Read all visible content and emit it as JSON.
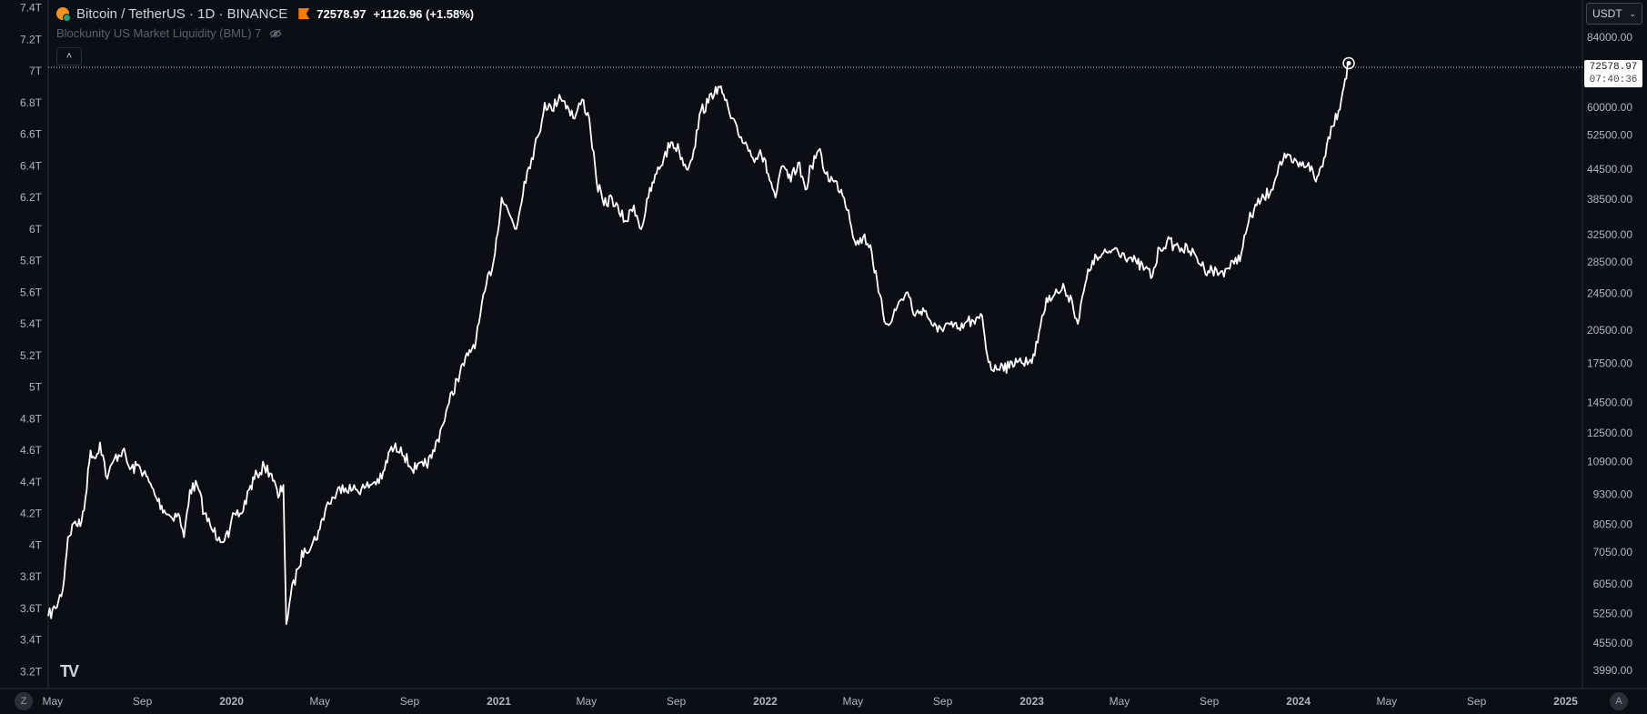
{
  "header": {
    "symbol": "Bitcoin / TetherUS · 1D · BINANCE",
    "last_price": "72578.97",
    "change": "+1126.96 (+1.58%)",
    "icon": "bitcoin-tether-icon"
  },
  "indicator": {
    "label": "Blockunity US Market Liquidity (BML) 7",
    "icon": "eye-hidden-icon"
  },
  "controls": {
    "collapse_label": "˄",
    "currency_label": "USDT",
    "currency_chevron": "⌄",
    "zoom_left_label": "Z",
    "auto_label": "A",
    "logo_text": "TV"
  },
  "price_marker": {
    "price": "72578.97",
    "countdown": "07:40:36"
  },
  "colors": {
    "background": "#0b0e14",
    "line": "#ffffff",
    "text": "#d1d4dc",
    "axis_text": "#b2b5be",
    "grid": "#1e222d"
  },
  "chart_data": {
    "type": "line",
    "title": "",
    "xlabel": "",
    "ylabel": "",
    "x_tick_labels": [
      "May",
      "Sep",
      "2020",
      "May",
      "Sep",
      "2021",
      "May",
      "Sep",
      "2022",
      "May",
      "Sep",
      "2023",
      "May",
      "Sep",
      "2024",
      "May",
      "Sep",
      "2025"
    ],
    "x_tick_dates": [
      "2019-05-01",
      "2019-09-01",
      "2020-01-01",
      "2020-05-01",
      "2020-09-01",
      "2021-01-01",
      "2021-05-01",
      "2021-09-01",
      "2022-01-01",
      "2022-05-01",
      "2022-09-01",
      "2023-01-01",
      "2023-05-01",
      "2023-09-01",
      "2024-01-01",
      "2024-05-01",
      "2024-09-01",
      "2025-01-01"
    ],
    "x_bold_labels": [
      "2020",
      "2021",
      "2022",
      "2023",
      "2024",
      "2025"
    ],
    "xlim": [
      "2019-04-25",
      "2025-01-24"
    ],
    "left_axis": {
      "name": "Blockunity US Market Liquidity",
      "ylim": [
        3.15,
        7.45
      ],
      "ticks": [
        3.2,
        3.4,
        3.6,
        3.8,
        4.0,
        4.2,
        4.4,
        4.6,
        4.8,
        5.0,
        5.2,
        5.4,
        5.6,
        5.8,
        6.0,
        6.2,
        6.4,
        6.6,
        6.8,
        7.0,
        7.2,
        7.4
      ],
      "tick_labels": [
        "3.2T",
        "3.4T",
        "3.6T",
        "3.8T",
        "4T",
        "4.2T",
        "4.4T",
        "4.6T",
        "4.8T",
        "5T",
        "5.2T",
        "5.4T",
        "5.6T",
        "5.8T",
        "6T",
        "6.2T",
        "6.4T",
        "6.6T",
        "6.8T",
        "7T",
        "7.2T",
        "7.4T"
      ]
    },
    "right_axis": {
      "name": "BTCUSDT",
      "scale": "log",
      "ticks": [
        3990,
        4550,
        5250,
        6050,
        7050,
        8050,
        9300,
        10900,
        12500,
        14500,
        17500,
        20500,
        24500,
        28500,
        32500,
        38500,
        44500,
        52500,
        60000,
        84000
      ],
      "tick_labels": [
        "3990.00",
        "4550.00",
        "5250.00",
        "6050.00",
        "7050.00",
        "8050.00",
        "9300.00",
        "10900.00",
        "12500.00",
        "14500.00",
        "17500.00",
        "20500.00",
        "24500.00",
        "28500.00",
        "32500.00",
        "38500.00",
        "44500.00",
        "52500.00",
        "60000.00",
        "84000.00"
      ]
    },
    "series": [
      {
        "axis": "left",
        "points": [
          [
            "2019-04-25",
            3.55
          ],
          [
            "2019-05-05",
            3.6
          ],
          [
            "2019-05-15",
            3.72
          ],
          [
            "2019-05-22",
            4.05
          ],
          [
            "2019-06-01",
            4.15
          ],
          [
            "2019-06-08",
            4.12
          ],
          [
            "2019-06-15",
            4.3
          ],
          [
            "2019-06-22",
            4.6
          ],
          [
            "2019-06-29",
            4.55
          ],
          [
            "2019-07-05",
            4.65
          ],
          [
            "2019-07-15",
            4.42
          ],
          [
            "2019-07-25",
            4.55
          ],
          [
            "2019-08-05",
            4.6
          ],
          [
            "2019-08-15",
            4.48
          ],
          [
            "2019-08-28",
            4.5
          ],
          [
            "2019-09-10",
            4.4
          ],
          [
            "2019-09-20",
            4.3
          ],
          [
            "2019-10-01",
            4.22
          ],
          [
            "2019-10-10",
            4.18
          ],
          [
            "2019-10-20",
            4.2
          ],
          [
            "2019-10-28",
            4.05
          ],
          [
            "2019-11-05",
            4.35
          ],
          [
            "2019-11-15",
            4.38
          ],
          [
            "2019-11-25",
            4.2
          ],
          [
            "2019-12-05",
            4.1
          ],
          [
            "2019-12-15",
            4.05
          ],
          [
            "2019-12-28",
            4.05
          ],
          [
            "2020-01-05",
            4.2
          ],
          [
            "2020-01-15",
            4.2
          ],
          [
            "2020-01-25",
            4.35
          ],
          [
            "2020-02-05",
            4.45
          ],
          [
            "2020-02-15",
            4.5
          ],
          [
            "2020-02-25",
            4.45
          ],
          [
            "2020-03-05",
            4.3
          ],
          [
            "2020-03-12",
            4.38
          ],
          [
            "2020-03-16",
            3.5
          ],
          [
            "2020-03-22",
            3.68
          ],
          [
            "2020-04-01",
            3.85
          ],
          [
            "2020-04-10",
            3.98
          ],
          [
            "2020-04-20",
            4.0
          ],
          [
            "2020-05-01",
            4.1
          ],
          [
            "2020-05-10",
            4.25
          ],
          [
            "2020-05-20",
            4.3
          ],
          [
            "2020-06-01",
            4.38
          ],
          [
            "2020-06-15",
            4.35
          ],
          [
            "2020-07-01",
            4.36
          ],
          [
            "2020-07-15",
            4.4
          ],
          [
            "2020-07-25",
            4.42
          ],
          [
            "2020-08-05",
            4.6
          ],
          [
            "2020-08-20",
            4.62
          ],
          [
            "2020-09-01",
            4.5
          ],
          [
            "2020-09-10",
            4.48
          ],
          [
            "2020-09-20",
            4.5
          ],
          [
            "2020-10-01",
            4.55
          ],
          [
            "2020-10-15",
            4.75
          ],
          [
            "2020-10-25",
            4.9
          ],
          [
            "2020-11-05",
            5.05
          ],
          [
            "2020-11-20",
            5.2
          ],
          [
            "2020-12-01",
            5.3
          ],
          [
            "2020-12-15",
            5.65
          ],
          [
            "2020-12-25",
            5.8
          ],
          [
            "2021-01-05",
            6.2
          ],
          [
            "2021-01-15",
            6.1
          ],
          [
            "2021-01-25",
            6.0
          ],
          [
            "2021-02-05",
            6.3
          ],
          [
            "2021-02-15",
            6.45
          ],
          [
            "2021-02-25",
            6.6
          ],
          [
            "2021-03-05",
            6.8
          ],
          [
            "2021-03-15",
            6.75
          ],
          [
            "2021-03-25",
            6.85
          ],
          [
            "2021-04-05",
            6.78
          ],
          [
            "2021-04-15",
            6.7
          ],
          [
            "2021-04-25",
            6.82
          ],
          [
            "2021-05-05",
            6.7
          ],
          [
            "2021-05-15",
            6.3
          ],
          [
            "2021-05-25",
            6.15
          ],
          [
            "2021-06-05",
            6.2
          ],
          [
            "2021-06-15",
            6.1
          ],
          [
            "2021-06-25",
            6.05
          ],
          [
            "2021-07-05",
            6.15
          ],
          [
            "2021-07-15",
            6.0
          ],
          [
            "2021-07-25",
            6.2
          ],
          [
            "2021-08-05",
            6.35
          ],
          [
            "2021-08-15",
            6.45
          ],
          [
            "2021-08-25",
            6.55
          ],
          [
            "2021-09-05",
            6.5
          ],
          [
            "2021-09-15",
            6.38
          ],
          [
            "2021-09-25",
            6.5
          ],
          [
            "2021-10-05",
            6.75
          ],
          [
            "2021-10-15",
            6.8
          ],
          [
            "2021-10-25",
            6.9
          ],
          [
            "2021-11-05",
            6.85
          ],
          [
            "2021-11-15",
            6.7
          ],
          [
            "2021-11-25",
            6.6
          ],
          [
            "2021-12-05",
            6.55
          ],
          [
            "2021-12-15",
            6.45
          ],
          [
            "2021-12-25",
            6.5
          ],
          [
            "2022-01-05",
            6.35
          ],
          [
            "2022-01-15",
            6.2
          ],
          [
            "2022-01-25",
            6.4
          ],
          [
            "2022-02-05",
            6.3
          ],
          [
            "2022-02-15",
            6.42
          ],
          [
            "2022-02-25",
            6.25
          ],
          [
            "2022-03-05",
            6.4
          ],
          [
            "2022-03-15",
            6.5
          ],
          [
            "2022-03-25",
            6.35
          ],
          [
            "2022-04-05",
            6.3
          ],
          [
            "2022-04-15",
            6.25
          ],
          [
            "2022-04-25",
            6.12
          ],
          [
            "2022-05-05",
            5.9
          ],
          [
            "2022-05-15",
            5.95
          ],
          [
            "2022-05-25",
            5.9
          ],
          [
            "2022-06-05",
            5.6
          ],
          [
            "2022-06-15",
            5.4
          ],
          [
            "2022-06-25",
            5.45
          ],
          [
            "2022-07-05",
            5.55
          ],
          [
            "2022-07-15",
            5.6
          ],
          [
            "2022-07-25",
            5.45
          ],
          [
            "2022-08-05",
            5.5
          ],
          [
            "2022-08-15",
            5.42
          ],
          [
            "2022-08-25",
            5.35
          ],
          [
            "2022-09-05",
            5.4
          ],
          [
            "2022-09-15",
            5.38
          ],
          [
            "2022-09-25",
            5.36
          ],
          [
            "2022-10-05",
            5.42
          ],
          [
            "2022-10-15",
            5.4
          ],
          [
            "2022-10-25",
            5.45
          ],
          [
            "2022-11-01",
            5.2
          ],
          [
            "2022-11-10",
            5.1
          ],
          [
            "2022-11-20",
            5.15
          ],
          [
            "2022-12-01",
            5.12
          ],
          [
            "2022-12-10",
            5.18
          ],
          [
            "2022-12-20",
            5.15
          ],
          [
            "2023-01-05",
            5.2
          ],
          [
            "2023-01-15",
            5.45
          ],
          [
            "2023-01-25",
            5.58
          ],
          [
            "2023-02-05",
            5.6
          ],
          [
            "2023-02-15",
            5.62
          ],
          [
            "2023-02-25",
            5.55
          ],
          [
            "2023-03-05",
            5.4
          ],
          [
            "2023-03-15",
            5.65
          ],
          [
            "2023-03-25",
            5.8
          ],
          [
            "2023-04-05",
            5.82
          ],
          [
            "2023-04-15",
            5.85
          ],
          [
            "2023-04-25",
            5.88
          ],
          [
            "2023-05-05",
            5.85
          ],
          [
            "2023-05-15",
            5.82
          ],
          [
            "2023-05-25",
            5.78
          ],
          [
            "2023-06-05",
            5.75
          ],
          [
            "2023-06-15",
            5.7
          ],
          [
            "2023-06-25",
            5.88
          ],
          [
            "2023-07-05",
            5.92
          ],
          [
            "2023-07-15",
            5.9
          ],
          [
            "2023-07-25",
            5.88
          ],
          [
            "2023-08-05",
            5.86
          ],
          [
            "2023-08-15",
            5.82
          ],
          [
            "2023-08-25",
            5.75
          ],
          [
            "2023-09-05",
            5.74
          ],
          [
            "2023-09-15",
            5.72
          ],
          [
            "2023-09-25",
            5.75
          ],
          [
            "2023-10-05",
            5.78
          ],
          [
            "2023-10-15",
            5.85
          ],
          [
            "2023-10-25",
            6.05
          ],
          [
            "2023-11-05",
            6.15
          ],
          [
            "2023-11-15",
            6.2
          ],
          [
            "2023-11-25",
            6.25
          ],
          [
            "2023-12-05",
            6.4
          ],
          [
            "2023-12-15",
            6.45
          ],
          [
            "2023-12-25",
            6.42
          ],
          [
            "2024-01-05",
            6.4
          ],
          [
            "2024-01-15",
            6.42
          ],
          [
            "2024-01-25",
            6.3
          ],
          [
            "2024-02-05",
            6.45
          ],
          [
            "2024-02-15",
            6.65
          ],
          [
            "2024-02-25",
            6.75
          ],
          [
            "2024-03-05",
            6.95
          ],
          [
            "2024-03-10",
            7.05
          ]
        ]
      }
    ],
    "last_value_marker": {
      "date": "2024-03-10",
      "price": 72578.97
    }
  }
}
